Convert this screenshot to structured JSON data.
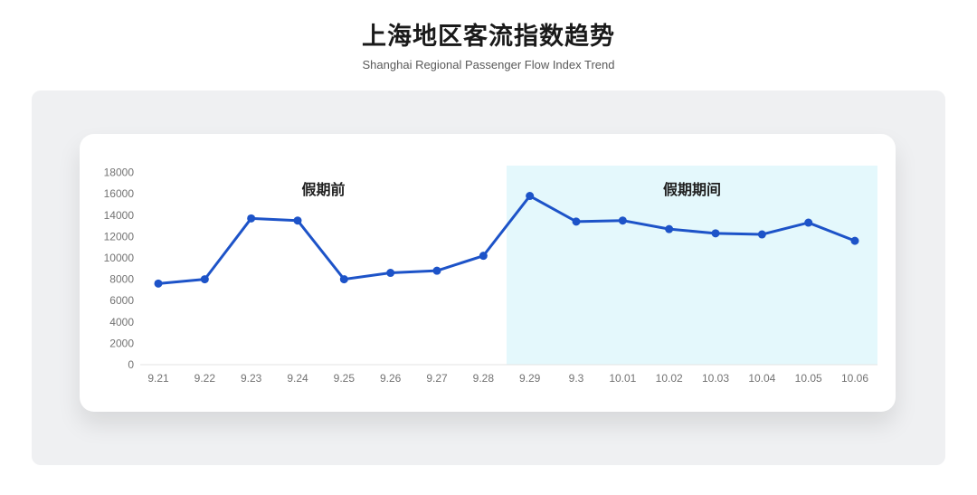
{
  "page": {
    "title": "上海地区客流指数趋势",
    "subtitle": "Shanghai Regional Passenger Flow Index Trend"
  },
  "chart_data": {
    "type": "line",
    "title": "上海地区客流指数趋势",
    "subtitle": "Shanghai Regional Passenger Flow Index Trend",
    "categories": [
      "9.21",
      "9.22",
      "9.23",
      "9.24",
      "9.25",
      "9.26",
      "9.27",
      "9.28",
      "9.29",
      "9.3",
      "10.01",
      "10.02",
      "10.03",
      "10.04",
      "10.05",
      "10.06"
    ],
    "series": [
      {
        "name": "客流指数",
        "values": [
          7600,
          8000,
          13700,
          13500,
          8000,
          8600,
          8800,
          10200,
          15800,
          13400,
          13500,
          12700,
          12300,
          12200,
          13300,
          11600
        ]
      }
    ],
    "xlabel": "",
    "ylabel": "",
    "ylim": [
      0,
      18000
    ],
    "ytick_step": 2000,
    "grid": false,
    "legend_position": "none",
    "annotations": [
      {
        "label": "假期前",
        "region": "pre-holiday",
        "shaded": false
      },
      {
        "label": "假期期间",
        "region": "holiday",
        "shaded": true,
        "start_category": "9.29"
      }
    ],
    "colors": {
      "line": "#1d53c8",
      "point": "#1d53c8",
      "holiday_region_bg": "#e4f8fc",
      "axis_label": "#737373",
      "axis_line": "#e3e3e3",
      "annotation_text": "#1f1f1f"
    }
  }
}
